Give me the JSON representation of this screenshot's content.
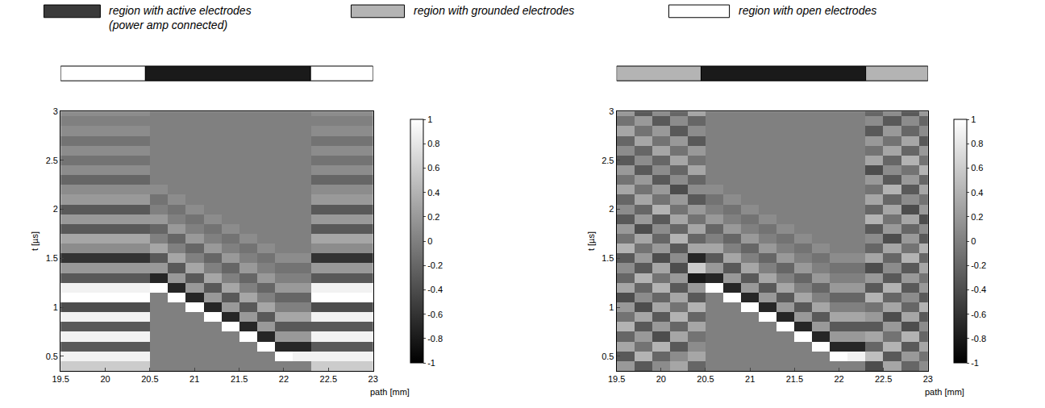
{
  "region_key": [
    {
      "label": [
        "region with active electrodes",
        "(power amp connected)"
      ],
      "color": "#3a3a3a"
    },
    {
      "label": [
        "region with grounded electrodes"
      ],
      "color": "#b4b4b4"
    },
    {
      "label": [
        "region with open electrodes"
      ],
      "color": "#ffffff"
    }
  ],
  "chart_data": [
    {
      "type": "heatmap",
      "xlabel": "path [mm]",
      "ylabel": "t [µs]",
      "xlim": [
        19.5,
        23
      ],
      "xticks": [
        19.5,
        20,
        20.5,
        21,
        21.5,
        22,
        22.5,
        23
      ],
      "ylim": [
        0.35,
        3
      ],
      "yticks": [
        0.5,
        1,
        1.5,
        2,
        2.5,
        3
      ],
      "colorbar_range": [
        -1,
        1
      ],
      "colorbar_ticks": [
        -1,
        -0.8,
        -0.6,
        -0.4,
        -0.2,
        0,
        0.2,
        0.4,
        0.6,
        0.8,
        1
      ],
      "regions": [
        {
          "color": "#ffffff",
          "from": 19.5,
          "to": 20.45
        },
        {
          "color": "#1a1a1a",
          "from": 20.45,
          "to": 22.3
        },
        {
          "color": "#ffffff",
          "from": 22.3,
          "to": 23
        }
      ],
      "x": [
        19.6,
        19.8,
        20.0,
        20.2,
        20.4,
        20.6,
        20.8,
        21.0,
        21.2,
        21.4,
        21.6,
        21.8,
        22.0,
        22.2,
        22.4,
        22.6,
        22.8,
        23.0
      ],
      "y": [
        0.4,
        0.5,
        0.6,
        0.7,
        0.8,
        0.9,
        1.0,
        1.1,
        1.2,
        1.3,
        1.4,
        1.5,
        1.6,
        1.7,
        1.8,
        1.9,
        2.0,
        2.1,
        2.2,
        2.3,
        2.4,
        2.5,
        2.6,
        2.7,
        2.8,
        2.9,
        3.0
      ],
      "z": [
        [
          0.6,
          0.6,
          0.6,
          0.6,
          0.6,
          0,
          0,
          0,
          0,
          0,
          0,
          0,
          0,
          0,
          0.6,
          0.6,
          0.6,
          0.6
        ],
        [
          0.9,
          0.9,
          0.9,
          0.9,
          0.9,
          0,
          0,
          0,
          0,
          0,
          0,
          0,
          1,
          0.9,
          0.9,
          0.9,
          0.9,
          0.9
        ],
        [
          -0.3,
          -0.3,
          -0.3,
          -0.3,
          -0.3,
          0,
          0,
          0,
          0,
          0,
          0,
          1,
          -0.7,
          -0.7,
          -0.3,
          -0.3,
          -0.3,
          -0.3
        ],
        [
          0.9,
          0.9,
          0.9,
          0.9,
          0.9,
          0,
          0,
          0,
          0,
          0,
          1,
          -0.7,
          0.2,
          0.2,
          0.9,
          0.9,
          0.9,
          0.9
        ],
        [
          -0.3,
          -0.3,
          -0.3,
          -0.3,
          -0.3,
          0,
          0,
          0,
          0,
          1,
          -0.7,
          0.2,
          -0.3,
          -0.3,
          -0.3,
          -0.3,
          -0.3,
          -0.3
        ],
        [
          0.9,
          0.9,
          0.9,
          0.9,
          0.9,
          0,
          0,
          0,
          1,
          -0.7,
          0.2,
          -0.3,
          0.3,
          0.3,
          0.9,
          0.9,
          0.9,
          0.9
        ],
        [
          -0.4,
          -0.4,
          -0.4,
          -0.4,
          -0.4,
          0,
          0,
          1,
          -0.7,
          0.2,
          -0.3,
          0.3,
          0,
          0,
          -0.4,
          -0.4,
          -0.4,
          -0.4
        ],
        [
          1,
          1,
          1,
          1,
          1,
          0,
          1,
          -0.7,
          0.2,
          -0.3,
          0.3,
          0,
          -0.2,
          -0.2,
          1,
          1,
          1,
          1
        ],
        [
          0.9,
          0.9,
          0.9,
          0.9,
          0.9,
          1,
          -0.7,
          0.2,
          -0.3,
          0.3,
          0,
          -0.2,
          0.2,
          0.2,
          0.9,
          0.9,
          0.9,
          0.9
        ],
        [
          -0.3,
          -0.3,
          -0.3,
          -0.3,
          -0.3,
          -0.7,
          0.2,
          -0.3,
          0.3,
          0,
          -0.2,
          0.2,
          0,
          0,
          -0.3,
          -0.3,
          -0.3,
          -0.3
        ],
        [
          0.2,
          0.2,
          0.2,
          0.2,
          0.2,
          0.2,
          -0.3,
          0.3,
          0,
          -0.2,
          0.2,
          0,
          -0.1,
          -0.1,
          0.2,
          0.2,
          0.2,
          0.2
        ],
        [
          -0.6,
          -0.6,
          -0.6,
          -0.6,
          -0.6,
          -0.3,
          0.3,
          0,
          -0.2,
          0.2,
          0,
          -0.1,
          0.1,
          0.1,
          -0.6,
          -0.6,
          -0.6,
          -0.6
        ],
        [
          0.1,
          0.1,
          0.1,
          0.1,
          0.1,
          0.3,
          0,
          -0.2,
          0.2,
          0,
          -0.1,
          0.1,
          0,
          0,
          0.1,
          0.1,
          0.1,
          0.1
        ],
        [
          0.3,
          0.3,
          0.3,
          0.3,
          0.3,
          0,
          -0.2,
          0.2,
          0,
          -0.1,
          0.1,
          0,
          0,
          0,
          0.3,
          0.3,
          0.3,
          0.3
        ],
        [
          -0.3,
          -0.3,
          -0.3,
          -0.3,
          -0.3,
          -0.2,
          0.2,
          0,
          -0.1,
          0.1,
          0,
          0,
          0,
          0,
          -0.3,
          -0.3,
          -0.3,
          -0.3
        ],
        [
          0.2,
          0.2,
          0.2,
          0.2,
          0.2,
          0.2,
          0,
          -0.1,
          0.1,
          0,
          0,
          0,
          0,
          0,
          0.2,
          0.2,
          0.2,
          0.2
        ],
        [
          -0.3,
          -0.3,
          -0.3,
          -0.3,
          -0.3,
          0,
          -0.1,
          0.1,
          0,
          0,
          0,
          0,
          0,
          0,
          -0.3,
          -0.3,
          -0.3,
          -0.3
        ],
        [
          0.2,
          0.2,
          0.2,
          0.2,
          0.2,
          -0.1,
          0.1,
          0,
          0,
          0,
          0,
          0,
          0,
          0,
          0.2,
          0.2,
          0.2,
          0.2
        ],
        [
          0.1,
          0.1,
          0.1,
          0.1,
          0.1,
          0.1,
          0,
          0,
          0,
          0,
          0,
          0,
          0,
          0,
          0.1,
          0.1,
          0.1,
          0.1
        ],
        [
          -0.2,
          -0.2,
          -0.2,
          -0.2,
          -0.2,
          0,
          0,
          0,
          0,
          0,
          0,
          0,
          0,
          0,
          -0.2,
          -0.2,
          -0.2,
          -0.2
        ],
        [
          0.1,
          0.1,
          0.1,
          0.1,
          0.1,
          0,
          0,
          0,
          0,
          0,
          0,
          0,
          0,
          0,
          0.1,
          0.1,
          0.1,
          0.1
        ],
        [
          -0.1,
          -0.1,
          -0.1,
          -0.1,
          -0.1,
          0,
          0,
          0,
          0,
          0,
          0,
          0,
          0,
          0,
          -0.1,
          -0.1,
          -0.1,
          -0.1
        ],
        [
          0.1,
          0.1,
          0.1,
          0.1,
          0.1,
          0,
          0,
          0,
          0,
          0,
          0,
          0,
          0,
          0,
          0.1,
          0.1,
          0.1,
          0.1
        ],
        [
          -0.1,
          -0.1,
          -0.1,
          -0.1,
          -0.1,
          0,
          0,
          0,
          0,
          0,
          0,
          0,
          0,
          0,
          -0.1,
          -0.1,
          -0.1,
          -0.1
        ],
        [
          0.1,
          0.1,
          0.1,
          0.1,
          0.1,
          0,
          0,
          0,
          0,
          0,
          0,
          0,
          0,
          0,
          0.1,
          0.1,
          0.1,
          0.1
        ],
        [
          0,
          0,
          0,
          0,
          0,
          0,
          0,
          0,
          0,
          0,
          0,
          0,
          0,
          0,
          0,
          0,
          0,
          0
        ],
        [
          0.1,
          0.1,
          0.1,
          0.1,
          0.1,
          0,
          0,
          0,
          0,
          0,
          0,
          0,
          0,
          0,
          0.1,
          0.1,
          0.1,
          0.1
        ]
      ]
    },
    {
      "type": "heatmap",
      "xlabel": "path [mm]",
      "ylabel": "t [µs]",
      "xlim": [
        19.5,
        23
      ],
      "xticks": [
        19.5,
        20,
        20.5,
        21,
        21.5,
        22,
        22.5,
        23
      ],
      "ylim": [
        0.35,
        3
      ],
      "yticks": [
        0.5,
        1,
        1.5,
        2,
        2.5,
        3
      ],
      "colorbar_range": [
        -1,
        1
      ],
      "colorbar_ticks": [
        -1,
        -0.8,
        -0.6,
        -0.4,
        -0.2,
        0,
        0.2,
        0.4,
        0.6,
        0.8,
        1
      ],
      "regions": [
        {
          "color": "#b4b4b4",
          "from": 19.5,
          "to": 20.45
        },
        {
          "color": "#1a1a1a",
          "from": 20.45,
          "to": 22.3
        },
        {
          "color": "#b4b4b4",
          "from": 22.3,
          "to": 23
        }
      ],
      "x": [
        19.6,
        19.8,
        20.0,
        20.2,
        20.4,
        20.6,
        20.8,
        21.0,
        21.2,
        21.4,
        21.6,
        21.8,
        22.0,
        22.2,
        22.4,
        22.6,
        22.8,
        23.0
      ],
      "y": [
        0.4,
        0.5,
        0.6,
        0.7,
        0.8,
        0.9,
        1.0,
        1.1,
        1.2,
        1.3,
        1.4,
        1.5,
        1.6,
        1.7,
        1.8,
        1.9,
        2.0,
        2.1,
        2.2,
        2.3,
        2.4,
        2.5,
        2.6,
        2.7,
        2.8,
        2.9,
        3.0
      ],
      "z": [
        [
          0.2,
          -0.3,
          0.1,
          0.3,
          -0.2,
          0,
          0,
          0,
          0,
          0,
          0,
          0,
          0,
          0,
          -0.4,
          0.3,
          -0.2,
          0.1
        ],
        [
          -0.3,
          0.4,
          -0.2,
          0.1,
          0.3,
          0,
          0,
          0,
          0,
          0,
          0,
          0,
          1,
          0.9,
          0.5,
          -0.3,
          0.2,
          -0.1
        ],
        [
          0.3,
          -0.1,
          0.4,
          -0.3,
          0.1,
          0,
          0,
          0,
          0,
          0,
          0,
          1,
          -0.7,
          -0.7,
          -0.2,
          0.4,
          -0.3,
          0.3
        ],
        [
          -0.2,
          0.2,
          -0.4,
          0.3,
          -0.1,
          0,
          0,
          0,
          0,
          0,
          1,
          -0.7,
          0.2,
          0.2,
          0.3,
          -0.1,
          0.4,
          -0.2
        ],
        [
          0.4,
          -0.3,
          0.2,
          -0.2,
          0.3,
          0,
          0,
          0,
          0,
          1,
          -0.7,
          0.2,
          -0.3,
          -0.3,
          -0.3,
          0.2,
          -0.4,
          0.1
        ],
        [
          -0.1,
          0.3,
          -0.3,
          0.4,
          -0.2,
          0,
          0,
          0,
          1,
          -0.7,
          0.2,
          -0.3,
          0.3,
          0.3,
          0.2,
          -0.4,
          0.3,
          -0.3
        ],
        [
          0.2,
          -0.4,
          0.3,
          -0.1,
          0.4,
          0,
          0,
          1,
          -0.7,
          0.2,
          -0.3,
          0.3,
          0,
          0,
          -0.1,
          0.3,
          -0.2,
          0.4
        ],
        [
          -0.4,
          0.1,
          -0.2,
          0.3,
          -0.3,
          0,
          1,
          -0.7,
          0.2,
          -0.3,
          0.3,
          0,
          -0.2,
          -0.2,
          0.4,
          -0.2,
          0.1,
          -0.3
        ],
        [
          0.3,
          -0.2,
          0.4,
          -0.3,
          0.2,
          1,
          -0.7,
          0.2,
          -0.3,
          0.3,
          0,
          -0.2,
          0.2,
          0.2,
          -0.3,
          0.4,
          -0.3,
          0.2
        ],
        [
          -0.2,
          0.4,
          -0.1,
          0.2,
          -0.8,
          -0.7,
          0.2,
          -0.3,
          0.3,
          0,
          -0.2,
          0.2,
          0,
          0,
          0.2,
          -0.3,
          0.2,
          -0.1
        ],
        [
          0.1,
          -0.3,
          0.3,
          -0.4,
          0.6,
          0.2,
          -0.3,
          0.3,
          0,
          -0.2,
          0.2,
          0,
          -0.1,
          -0.1,
          -0.4,
          0.1,
          -0.3,
          0.3
        ],
        [
          -0.3,
          0.2,
          -0.4,
          0.1,
          -0.7,
          -0.3,
          0.3,
          0,
          -0.2,
          0.2,
          0,
          -0.1,
          0.1,
          0.1,
          0.3,
          -0.2,
          0.4,
          -0.2
        ],
        [
          0.4,
          -0.1,
          0.2,
          -0.3,
          0.3,
          0.3,
          0,
          -0.2,
          0.2,
          0,
          -0.1,
          0.1,
          0,
          0,
          -0.2,
          0.3,
          -0.1,
          0.4
        ],
        [
          -0.1,
          0.3,
          -0.2,
          0.4,
          -0.2,
          0,
          -0.2,
          0.2,
          0,
          -0.1,
          0.1,
          0,
          0,
          0,
          0.1,
          -0.4,
          0.2,
          -0.3
        ],
        [
          0.2,
          -0.4,
          0.1,
          -0.2,
          0.3,
          -0.2,
          0.2,
          0,
          -0.1,
          0.1,
          0,
          0,
          0,
          0,
          -0.3,
          0.2,
          -0.2,
          0.1
        ],
        [
          -0.3,
          0.2,
          -0.3,
          0.3,
          -0.1,
          0.2,
          0,
          -0.1,
          0.1,
          0,
          0,
          0,
          0,
          0,
          0.4,
          -0.1,
          0.3,
          -0.4
        ],
        [
          0.1,
          -0.2,
          0.4,
          -0.1,
          0.2,
          0,
          -0.1,
          0.1,
          0,
          0,
          0,
          0,
          0,
          0,
          -0.2,
          0.3,
          -0.4,
          0.2
        ],
        [
          -0.2,
          0.3,
          -0.1,
          0.2,
          -0.3,
          -0.1,
          0.1,
          0,
          0,
          0,
          0,
          0,
          0,
          0,
          0.3,
          -0.2,
          0.1,
          -0.1
        ],
        [
          0.3,
          -0.1,
          0.2,
          -0.4,
          0.1,
          0.1,
          0,
          0,
          0,
          0,
          0,
          0,
          0,
          0,
          -0.1,
          0.4,
          -0.3,
          0.3
        ],
        [
          -0.1,
          0.2,
          -0.3,
          0.1,
          -0.2,
          0,
          0,
          0,
          0,
          0,
          0,
          0,
          0,
          0,
          0.2,
          -0.3,
          0.2,
          -0.2
        ],
        [
          0.2,
          -0.3,
          0.1,
          -0.2,
          0.3,
          0,
          0,
          0,
          0,
          0,
          0,
          0,
          0,
          0,
          -0.4,
          0.1,
          -0.1,
          0.4
        ],
        [
          -0.3,
          0.1,
          -0.2,
          0.3,
          -0.1,
          0,
          0,
          0,
          0,
          0,
          0,
          0,
          0,
          0,
          0.3,
          -0.2,
          0.4,
          -0.1
        ],
        [
          0.1,
          -0.2,
          0.3,
          -0.1,
          0.2,
          0,
          0,
          0,
          0,
          0,
          0,
          0,
          0,
          0,
          -0.1,
          0.3,
          -0.2,
          0.2
        ],
        [
          -0.2,
          0.3,
          -0.1,
          0.2,
          -0.3,
          0,
          0,
          0,
          0,
          0,
          0,
          0,
          0,
          0,
          0.2,
          -0.1,
          0.3,
          -0.3
        ],
        [
          0.3,
          -0.1,
          0.2,
          -0.3,
          0.1,
          0,
          0,
          0,
          0,
          0,
          0,
          0,
          0,
          0,
          -0.3,
          0.2,
          -0.2,
          0.1
        ],
        [
          -0.1,
          0.2,
          -0.3,
          0.1,
          -0.2,
          0,
          0,
          0,
          0,
          0,
          0,
          0,
          0,
          0,
          0.1,
          -0.3,
          0.1,
          -0.2
        ],
        [
          0.2,
          -0.3,
          0.1,
          -0.2,
          0.3,
          0,
          0,
          0,
          0,
          0,
          0,
          0,
          0,
          0,
          -0.2,
          0.1,
          -0.3,
          0.2
        ]
      ]
    }
  ]
}
